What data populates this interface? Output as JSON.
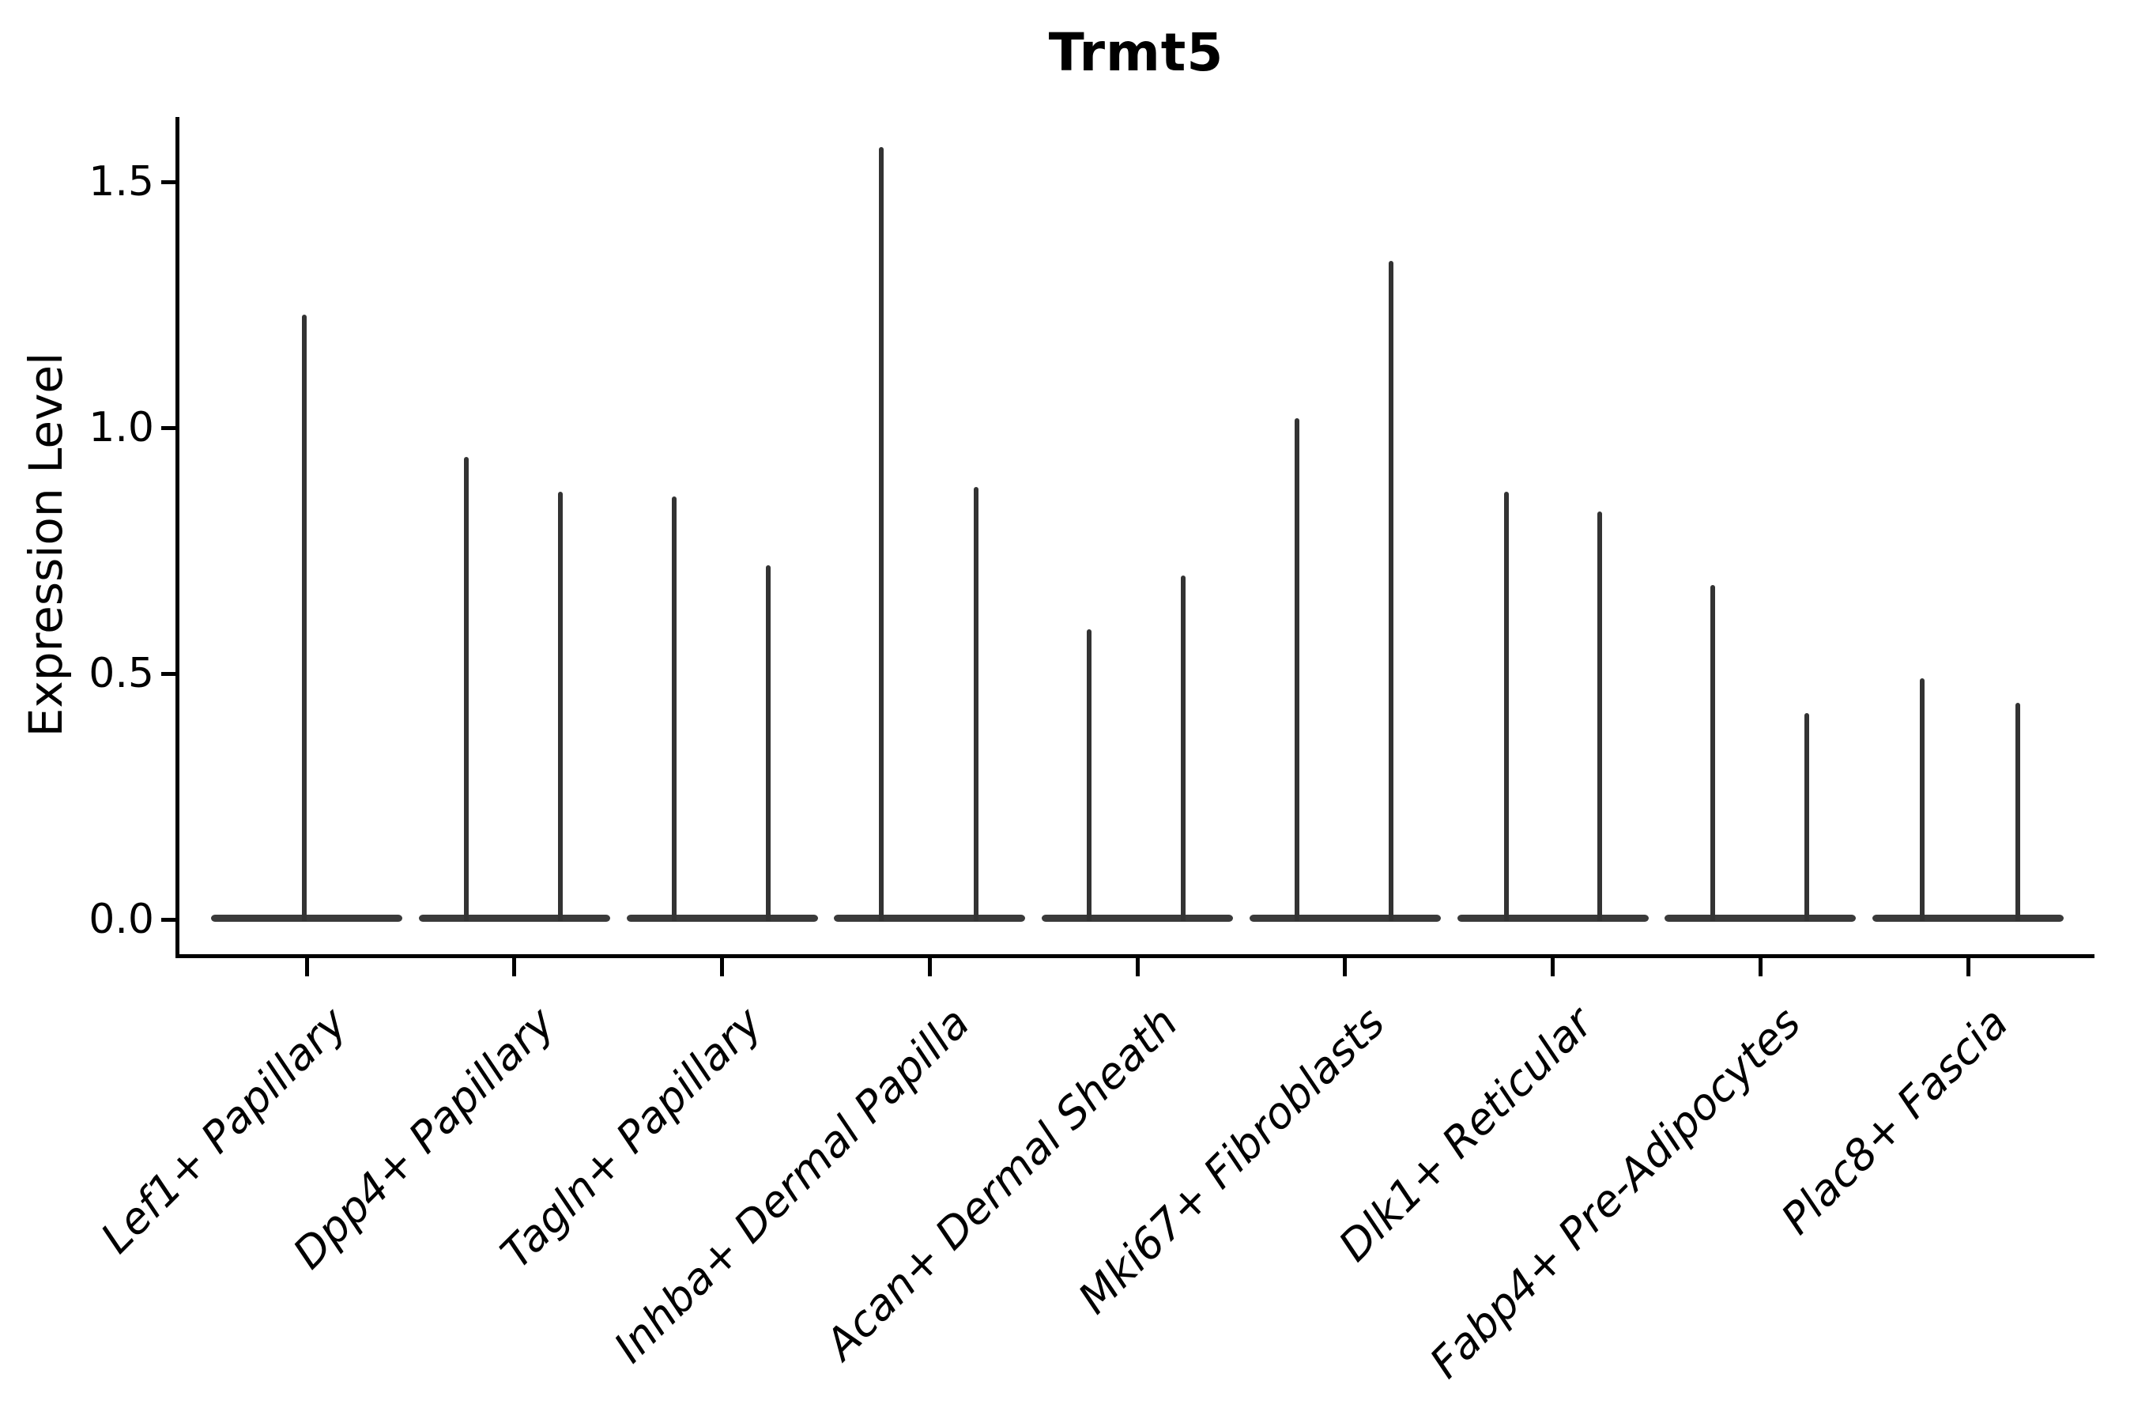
{
  "title": "Trmt5",
  "ylabel": "Expression Level",
  "colors": {
    "violin": "#333333",
    "violin_base": "#3a3a3a",
    "axis": "#000000",
    "text": "#000000",
    "background": "#ffffff"
  },
  "chart_data": {
    "type": "violin",
    "title": "Trmt5",
    "xlabel": "",
    "ylabel": "Expression Level",
    "ytick_labels": [
      "0.0",
      "0.5",
      "1.0",
      "1.5"
    ],
    "ytick_values": [
      0.0,
      0.5,
      1.0,
      1.5
    ],
    "ylim": [
      -0.08,
      1.63
    ],
    "grid": false,
    "legend": "none",
    "x_label_rotation_deg": 45,
    "categories": [
      "Lef1+ Papillary",
      "Dpp4+ Papillary",
      "Tagln+ Papillary",
      "Inhba+ Dermal Papilla",
      "Acan+ Dermal Sheath",
      "Mki67+ Fibroblasts",
      "Dlk1+ Reticular",
      "Fabp4+ Pre-Adipocytes",
      "Plac8+ Fascia"
    ],
    "violins": [
      {
        "category": "Lef1+ Papillary",
        "baseline_value": 0.0,
        "max_spikes": [
          {
            "dx": -3,
            "value": 1.23
          }
        ]
      },
      {
        "category": "Dpp4+ Papillary",
        "baseline_value": 0.0,
        "max_spikes": [
          {
            "dx": -61,
            "value": 0.94
          },
          {
            "dx": 58,
            "value": 0.87
          }
        ]
      },
      {
        "category": "Tagln+ Papillary",
        "baseline_value": 0.0,
        "max_spikes": [
          {
            "dx": -61,
            "value": 0.86
          },
          {
            "dx": 58,
            "value": 0.72
          }
        ]
      },
      {
        "category": "Inhba+ Dermal Papilla",
        "baseline_value": 0.0,
        "max_spikes": [
          {
            "dx": -61,
            "value": 1.57
          },
          {
            "dx": 59,
            "value": 0.88
          }
        ]
      },
      {
        "category": "Acan+ Dermal Sheath",
        "baseline_value": 0.0,
        "max_spikes": [
          {
            "dx": -61,
            "value": 0.59
          },
          {
            "dx": 58,
            "value": 0.7
          }
        ]
      },
      {
        "category": "Mki67+ Fibroblasts",
        "baseline_value": 0.0,
        "max_spikes": [
          {
            "dx": -61,
            "value": 1.02
          },
          {
            "dx": 58,
            "value": 1.34
          }
        ]
      },
      {
        "category": "Dlk1+ Reticular",
        "baseline_value": 0.0,
        "max_spikes": [
          {
            "dx": -59,
            "value": 0.87
          },
          {
            "dx": 59,
            "value": 0.83
          }
        ]
      },
      {
        "category": "Fabp4+ Pre-Adipocytes",
        "baseline_value": 0.0,
        "max_spikes": [
          {
            "dx": -60,
            "value": 0.68
          },
          {
            "dx": 59,
            "value": 0.42
          }
        ]
      },
      {
        "category": "Plac8+ Fascia",
        "baseline_value": 0.0,
        "max_spikes": [
          {
            "dx": -58,
            "value": 0.49
          },
          {
            "dx": 63,
            "value": 0.44
          }
        ]
      }
    ]
  }
}
